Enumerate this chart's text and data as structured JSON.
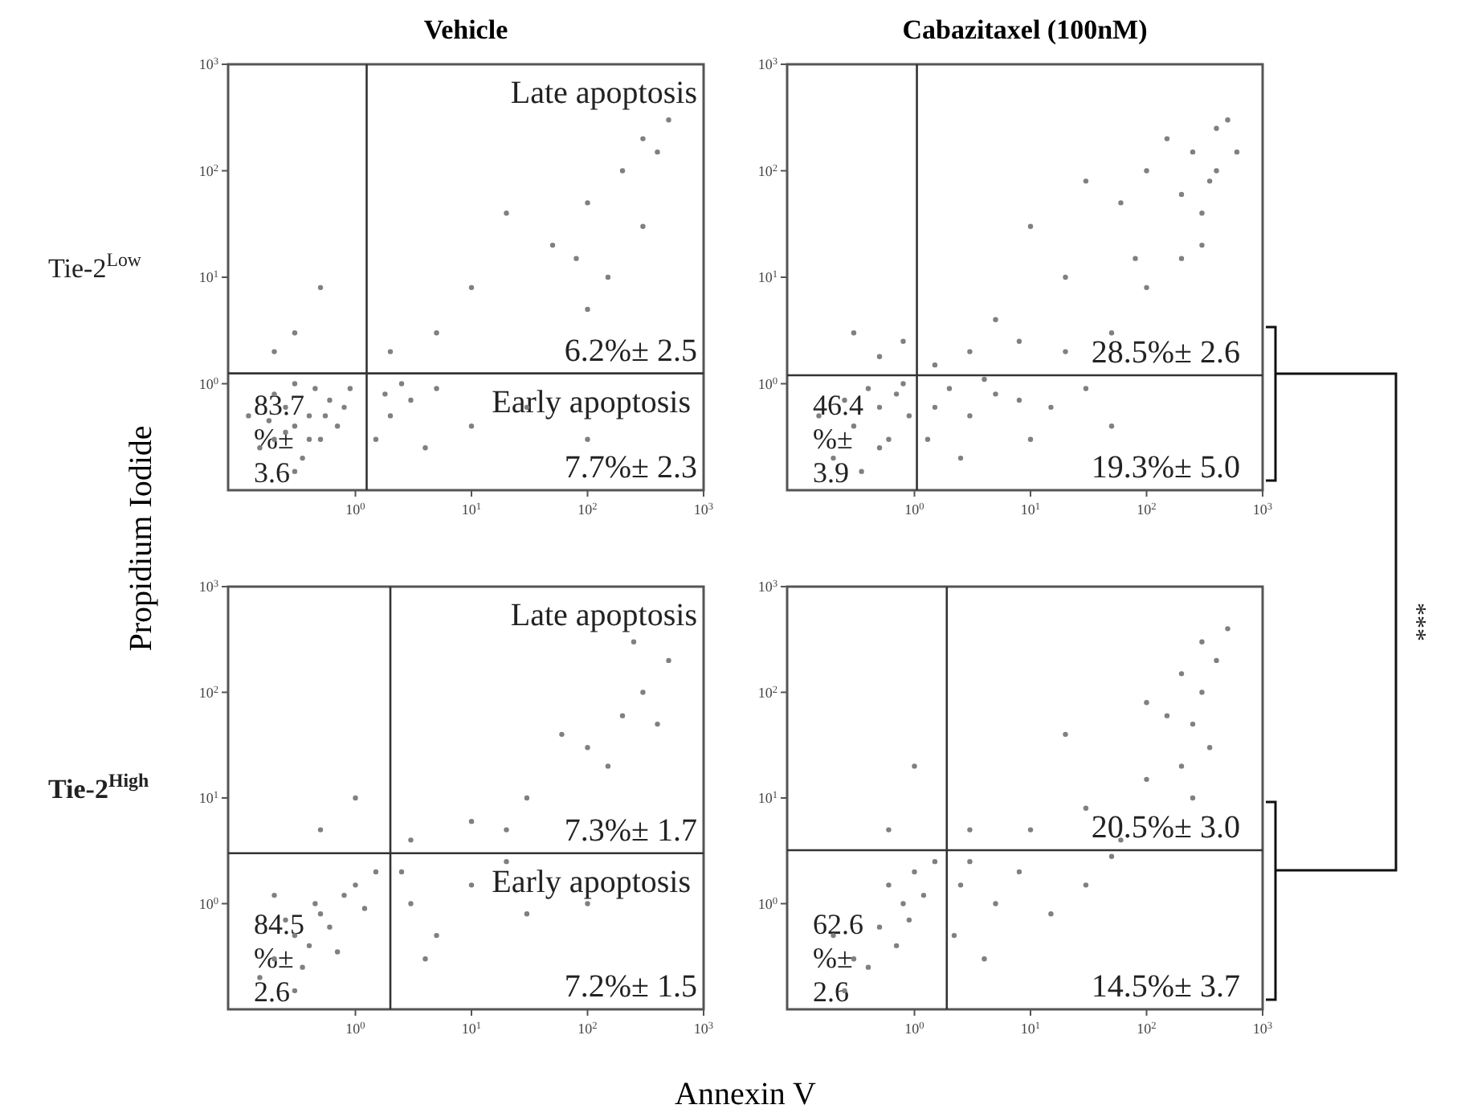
{
  "chart_data": [
    {
      "type": "scatter",
      "title": "Vehicle",
      "ylabel": "Propidium Iodide",
      "log": "xy",
      "marker": "circle",
      "xlim": [
        0.08,
        1000
      ],
      "ylim": [
        0.1,
        1000
      ],
      "xticks": [
        {
          "value": 1,
          "label": "10$^{0}$"
        },
        {
          "value": 10,
          "label": "10$^{1}$"
        },
        {
          "value": 100,
          "label": "10$^{2}$"
        },
        {
          "value": 1000,
          "label": "10$^{3}$"
        }
      ],
      "yticks": [
        {
          "value": 1,
          "label": "10$^{0}$"
        },
        {
          "value": 10,
          "label": "10$^{1}$"
        },
        {
          "value": 100,
          "label": "10$^{2}$"
        },
        {
          "value": 1000,
          "label": "10$^{3}$"
        }
      ],
      "ref_lines": [
        {
          "axis": "x",
          "value": 1.25
        },
        {
          "axis": "y",
          "value": 1.25
        }
      ],
      "annotations": [
        "Tie-2$^{Low}$",
        "Late apoptosis",
        "6.2%± 2.5",
        "Early apoptosis",
        "7.7%± 2.3",
        "83.7\n%±\n3.6"
      ],
      "x": [
        0.2,
        0.3,
        0.25,
        0.4,
        0.15,
        0.5,
        0.35,
        0.6,
        0.2,
        0.45,
        0.12,
        0.3,
        0.7,
        0.8,
        0.25,
        0.18,
        0.55,
        0.4,
        0.9,
        0.3,
        2,
        3,
        1.5,
        5,
        10,
        2.5,
        30,
        100,
        1.8,
        4,
        2,
        5,
        10,
        50,
        100,
        200,
        300,
        500,
        150,
        80,
        20,
        300,
        400,
        100,
        0.3,
        0.5,
        0.2
      ],
      "series": [
        {
          "color": "#808080",
          "values": [
            0.3,
            0.4,
            0.6,
            0.5,
            0.25,
            0.3,
            0.2,
            0.7,
            0.8,
            0.9,
            0.5,
            0.15,
            0.4,
            0.6,
            0.35,
            0.45,
            0.5,
            0.3,
            0.9,
            1.0,
            0.5,
            0.7,
            0.3,
            0.9,
            0.4,
            1.0,
            0.6,
            0.3,
            0.8,
            0.25,
            2,
            3,
            8,
            20,
            50,
            100,
            200,
            300,
            10,
            15,
            40,
            30,
            150,
            5,
            3,
            8,
            2
          ]
        }
      ]
    },
    {
      "type": "scatter",
      "title": "Cabazitaxel (100nM)",
      "log": "xy",
      "marker": "circle",
      "xlim": [
        0.08,
        1000
      ],
      "ylim": [
        0.1,
        1000
      ],
      "xticks": [
        {
          "value": 1,
          "label": "10$^{0}$"
        },
        {
          "value": 10,
          "label": "10$^{1}$"
        },
        {
          "value": 100,
          "label": "10$^{2}$"
        },
        {
          "value": 1000,
          "label": "10$^{3}$"
        }
      ],
      "yticks": [
        {
          "value": 1,
          "label": "10$^{0}$"
        },
        {
          "value": 10,
          "label": "10$^{1}$"
        },
        {
          "value": 100,
          "label": "10$^{2}$"
        },
        {
          "value": 1000,
          "label": "10$^{3}$"
        }
      ],
      "ref_lines": [
        {
          "axis": "x",
          "value": 1.05
        },
        {
          "axis": "y",
          "value": 1.2
        }
      ],
      "annotations": [
        "28.5%± 2.6",
        "19.3%± 5.0",
        "46.4\n%±\n3.9"
      ],
      "x": [
        0.3,
        0.5,
        0.2,
        0.7,
        0.4,
        0.6,
        0.15,
        0.8,
        0.25,
        0.9,
        0.35,
        0.5,
        1.5,
        2,
        3,
        5,
        1.3,
        8,
        15,
        30,
        2.5,
        50,
        4,
        10,
        1.5,
        3,
        8,
        20,
        50,
        100,
        200,
        300,
        400,
        250,
        150,
        500,
        100,
        60,
        30,
        10,
        300,
        200,
        400,
        80,
        20,
        5,
        600,
        350,
        0.5,
        0.3,
        0.8
      ],
      "series": [
        {
          "color": "#808080",
          "values": [
            0.4,
            0.6,
            0.2,
            0.8,
            0.9,
            0.3,
            0.5,
            1.0,
            0.7,
            0.5,
            0.15,
            0.25,
            0.6,
            0.9,
            0.5,
            0.8,
            0.3,
            0.7,
            0.6,
            0.9,
            0.2,
            0.4,
            1.1,
            0.3,
            1.5,
            2,
            2.5,
            2,
            3,
            8,
            15,
            40,
            100,
            150,
            200,
            300,
            100,
            50,
            80,
            30,
            20,
            60,
            250,
            15,
            10,
            4,
            150,
            80,
            1.8,
            3,
            2.5
          ]
        }
      ]
    },
    {
      "type": "scatter",
      "xlabel": "Annexin V",
      "log": "xy",
      "marker": "circle",
      "xlim": [
        0.08,
        1000
      ],
      "ylim": [
        0.1,
        1000
      ],
      "xticks": [
        {
          "value": 1,
          "label": "10$^{0}$"
        },
        {
          "value": 10,
          "label": "10$^{1}$"
        },
        {
          "value": 100,
          "label": "10$^{2}$"
        },
        {
          "value": 1000,
          "label": "10$^{3}$"
        }
      ],
      "yticks": [
        {
          "value": 1,
          "label": "10$^{0}$"
        },
        {
          "value": 10,
          "label": "10$^{1}$"
        },
        {
          "value": 100,
          "label": "10$^{2}$"
        },
        {
          "value": 1000,
          "label": "10$^{3}$"
        }
      ],
      "ref_lines": [
        {
          "axis": "x",
          "value": 2
        },
        {
          "axis": "y",
          "value": 3
        }
      ],
      "annotations": [
        "Tie-2$^{High}$",
        "Late apoptosis",
        "7.3%± 1.7",
        "Early apoptosis",
        "7.2%± 1.5",
        "84.5\n%±\n2.6"
      ],
      "x": [
        0.2,
        0.3,
        0.4,
        0.25,
        0.5,
        0.15,
        0.6,
        0.8,
        1,
        0.35,
        0.45,
        0.7,
        1.5,
        0.2,
        0.3,
        1.2,
        3,
        5,
        2.5,
        10,
        30,
        4,
        100,
        20,
        3,
        10,
        30,
        100,
        200,
        300,
        150,
        500,
        250,
        60,
        400,
        20,
        0.5,
        1
      ],
      "series": [
        {
          "color": "#808080",
          "values": [
            0.3,
            0.5,
            0.4,
            0.7,
            0.8,
            0.2,
            0.6,
            1.2,
            1.5,
            0.25,
            1.0,
            0.35,
            2,
            1.2,
            0.15,
            0.9,
            1,
            0.5,
            2,
            1.5,
            0.8,
            0.3,
            1,
            2.5,
            4,
            6,
            10,
            30,
            60,
            100,
            20,
            200,
            300,
            40,
            50,
            5,
            5,
            10
          ]
        }
      ]
    },
    {
      "type": "scatter",
      "log": "xy",
      "marker": "circle",
      "xlim": [
        0.08,
        1000
      ],
      "ylim": [
        0.1,
        1000
      ],
      "xticks": [
        {
          "value": 1,
          "label": "10$^{0}$"
        },
        {
          "value": 10,
          "label": "10$^{1}$"
        },
        {
          "value": 100,
          "label": "10$^{2}$"
        },
        {
          "value": 1000,
          "label": "10$^{3}$"
        }
      ],
      "yticks": [
        {
          "value": 1,
          "label": "10$^{0}$"
        },
        {
          "value": 10,
          "label": "10$^{1}$"
        },
        {
          "value": 100,
          "label": "10$^{2}$"
        },
        {
          "value": 1000,
          "label": "10$^{3}$"
        }
      ],
      "ref_lines": [
        {
          "axis": "x",
          "value": 1.9
        },
        {
          "axis": "y",
          "value": 3.2
        }
      ],
      "annotations": [
        "20.5%± 3.0",
        "14.5%± 3.7",
        "62.6\n%±\n2.6",
        "***"
      ],
      "x": [
        0.3,
        0.5,
        0.8,
        0.6,
        1,
        0.4,
        0.2,
        1.2,
        0.7,
        1.5,
        0.25,
        0.9,
        2.5,
        3,
        5,
        8,
        15,
        30,
        2.2,
        50,
        4,
        3,
        10,
        30,
        100,
        200,
        250,
        300,
        400,
        300,
        200,
        150,
        500,
        350,
        250,
        100,
        20,
        60,
        0.6,
        1
      ],
      "series": [
        {
          "color": "#808080",
          "values": [
            0.3,
            0.6,
            1.0,
            1.5,
            2,
            0.25,
            0.5,
            1.2,
            0.4,
            2.5,
            0.15,
            0.7,
            1.5,
            2.5,
            1,
            2,
            0.8,
            1.5,
            0.5,
            2.8,
            0.3,
            5,
            5,
            8,
            15,
            20,
            50,
            100,
            200,
            300,
            150,
            60,
            400,
            30,
            10,
            80,
            40,
            4,
            5,
            20
          ]
        }
      ]
    }
  ]
}
